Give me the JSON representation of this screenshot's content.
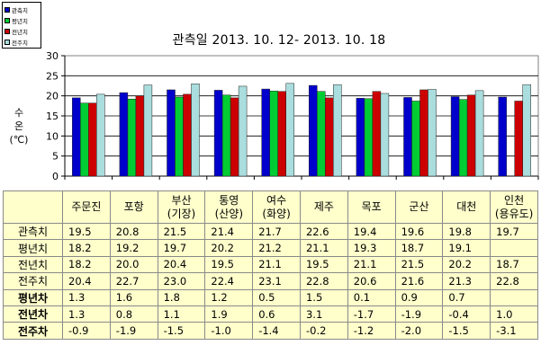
{
  "chart_data": {
    "type": "bar",
    "title": "관측일 2013. 10. 12-  2013. 10. 18",
    "ylabel": "수온 (℃)",
    "ylabel_lines": [
      "수",
      "온",
      "(℃)"
    ],
    "ylim": [
      0,
      30
    ],
    "yticks": [
      "0",
      "5",
      "10",
      "15",
      "20",
      "25",
      "30"
    ],
    "grid": true,
    "legend_position": "top-left",
    "categories": [
      "주문진",
      "포항",
      "부산 (기장)",
      "통영 (산양)",
      "여수 (화양)",
      "제주",
      "목포",
      "군산",
      "대천",
      "인천 (용유도)"
    ],
    "series": [
      {
        "name": "관측치",
        "color": "#0000cc",
        "values": [
          19.5,
          20.8,
          21.5,
          21.4,
          21.7,
          22.6,
          19.4,
          19.6,
          19.8,
          19.7
        ]
      },
      {
        "name": "평년치",
        "color": "#00cc33",
        "values": [
          18.2,
          19.2,
          19.7,
          20.2,
          21.2,
          21.1,
          19.3,
          18.7,
          19.1,
          null
        ]
      },
      {
        "name": "전년치",
        "color": "#cc0000",
        "values": [
          18.2,
          20.0,
          20.4,
          19.5,
          21.1,
          19.5,
          21.1,
          21.5,
          20.2,
          18.7
        ]
      },
      {
        "name": "전주치",
        "color": "#aadddd",
        "values": [
          20.4,
          22.7,
          23.0,
          22.4,
          23.1,
          22.8,
          20.6,
          21.6,
          21.3,
          22.8
        ]
      }
    ]
  },
  "table": {
    "headers": [
      [
        "주문진"
      ],
      [
        "포항"
      ],
      [
        "부산",
        "(기장)"
      ],
      [
        "통영",
        "(산양)"
      ],
      [
        "여수",
        "(화양)"
      ],
      [
        "제주"
      ],
      [
        "목포"
      ],
      [
        "군산"
      ],
      [
        "대천"
      ],
      [
        "인천",
        "(용유도)"
      ]
    ],
    "rows": [
      {
        "label": "관측치",
        "bold": false,
        "values": [
          "19.5",
          "20.8",
          "21.5",
          "21.4",
          "21.7",
          "22.6",
          "19.4",
          "19.6",
          "19.8",
          "19.7"
        ]
      },
      {
        "label": "평년치",
        "bold": false,
        "values": [
          "18.2",
          "19.2",
          "19.7",
          "20.2",
          "21.2",
          "21.1",
          "19.3",
          "18.7",
          "19.1",
          ""
        ]
      },
      {
        "label": "전년치",
        "bold": false,
        "values": [
          "18.2",
          "20.0",
          "20.4",
          "19.5",
          "21.1",
          "19.5",
          "21.1",
          "21.5",
          "20.2",
          "18.7"
        ]
      },
      {
        "label": "전주치",
        "bold": false,
        "values": [
          "20.4",
          "22.7",
          "23.0",
          "22.4",
          "23.1",
          "22.8",
          "20.6",
          "21.6",
          "21.3",
          "22.8"
        ]
      },
      {
        "label": "평년차",
        "bold": true,
        "values": [
          "1.3",
          "1.6",
          "1.8",
          "1.2",
          "0.5",
          "1.5",
          "0.1",
          "0.9",
          "0.7",
          ""
        ]
      },
      {
        "label": "전년차",
        "bold": true,
        "values": [
          "1.3",
          "0.8",
          "1.1",
          "1.9",
          "0.6",
          "3.1",
          "-1.7",
          "-1.9",
          "-0.4",
          "1.0"
        ]
      },
      {
        "label": "전주차",
        "bold": true,
        "values": [
          "-0.9",
          "-1.9",
          "-1.5",
          "-1.0",
          "-1.4",
          "-0.2",
          "-1.2",
          "-2.0",
          "-1.5",
          "-3.1"
        ]
      }
    ]
  }
}
